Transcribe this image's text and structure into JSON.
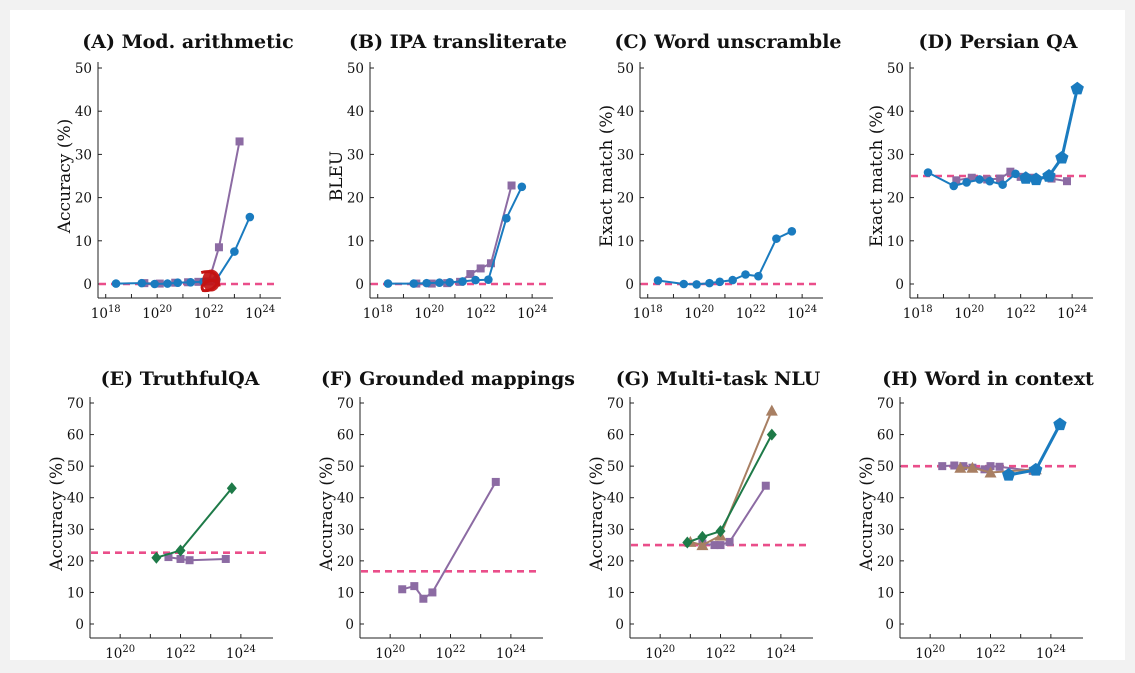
{
  "colors": {
    "purple": "#8c6ba3",
    "blue": "#1a7bbf",
    "green": "#1e7a48",
    "brown": "#a87f63",
    "baseline": "#ea4e8a",
    "highlight": "#c41212"
  },
  "chart_data": [
    {
      "type": "line",
      "title": "(A) Mod. arithmetic",
      "ylabel": "Accuracy (%)",
      "ylim": [
        0,
        50
      ],
      "yticks": [
        0,
        10,
        20,
        30,
        40,
        50
      ],
      "xscale": "log",
      "xlim_exp": [
        17.7,
        24.5
      ],
      "xtick_exp": [
        18,
        20,
        22,
        24
      ],
      "baseline": 0,
      "series": [
        {
          "color": "purple",
          "marker": "square",
          "points": [
            [
              19.5,
              0.2
            ],
            [
              20.1,
              0.1
            ],
            [
              20.7,
              0.3
            ],
            [
              21.2,
              0.4
            ],
            [
              21.6,
              0.5
            ],
            [
              22.0,
              0.6
            ],
            [
              22.4,
              8.5
            ],
            [
              23.2,
              33
            ]
          ]
        },
        {
          "color": "blue",
          "marker": "circle",
          "points": [
            [
              18.4,
              0.1
            ],
            [
              19.4,
              0.2
            ],
            [
              19.9,
              0.0
            ],
            [
              20.4,
              0.1
            ],
            [
              20.8,
              0.3
            ],
            [
              21.3,
              0.4
            ],
            [
              21.8,
              0.5
            ],
            [
              22.3,
              1.0
            ],
            [
              23.0,
              7.5
            ],
            [
              23.6,
              15.5
            ]
          ]
        }
      ],
      "annotation": {
        "shape": "scribble",
        "color": "highlight",
        "x": 22.1,
        "y": 0.8
      }
    },
    {
      "type": "line",
      "title": "(B) IPA transliterate",
      "ylabel": "BLEU",
      "ylim": [
        0,
        50
      ],
      "yticks": [
        0,
        10,
        20,
        30,
        40,
        50
      ],
      "xscale": "log",
      "xlim_exp": [
        17.7,
        24.5
      ],
      "xtick_exp": [
        18,
        20,
        22,
        24
      ],
      "baseline": 0,
      "series": [
        {
          "color": "purple",
          "marker": "square",
          "points": [
            [
              19.5,
              0.1
            ],
            [
              20.1,
              0.1
            ],
            [
              20.7,
              0.2
            ],
            [
              21.2,
              0.5
            ],
            [
              21.6,
              2.3
            ],
            [
              22.0,
              3.6
            ],
            [
              22.4,
              4.8
            ],
            [
              23.2,
              22.8
            ]
          ]
        },
        {
          "color": "blue",
          "marker": "circle",
          "points": [
            [
              18.4,
              0.1
            ],
            [
              19.4,
              0.1
            ],
            [
              19.9,
              0.2
            ],
            [
              20.4,
              0.3
            ],
            [
              20.8,
              0.4
            ],
            [
              21.3,
              0.6
            ],
            [
              21.8,
              0.9
            ],
            [
              22.3,
              1.0
            ],
            [
              23.0,
              15.2
            ],
            [
              23.6,
              22.5
            ]
          ]
        }
      ]
    },
    {
      "type": "line",
      "title": "(C) Word unscramble",
      "ylabel": "Exact match (%)",
      "ylim": [
        0,
        50
      ],
      "yticks": [
        0,
        10,
        20,
        30,
        40,
        50
      ],
      "xscale": "log",
      "xlim_exp": [
        17.7,
        24.5
      ],
      "xtick_exp": [
        18,
        20,
        22,
        24
      ],
      "baseline": 0,
      "series": [
        {
          "color": "blue",
          "marker": "circle",
          "points": [
            [
              18.4,
              0.8
            ],
            [
              19.4,
              0.0
            ],
            [
              19.9,
              -0.1
            ],
            [
              20.4,
              0.2
            ],
            [
              20.8,
              0.5
            ],
            [
              21.3,
              0.9
            ],
            [
              21.8,
              2.2
            ],
            [
              22.3,
              1.8
            ],
            [
              23.0,
              10.5
            ],
            [
              23.6,
              12.2
            ]
          ]
        }
      ]
    },
    {
      "type": "line",
      "title": "(D) Persian QA",
      "ylabel": "Exact match (%)",
      "ylim": [
        0,
        50
      ],
      "yticks": [
        0,
        10,
        20,
        30,
        40,
        50
      ],
      "xscale": "log",
      "xlim_exp": [
        17.7,
        24.5
      ],
      "xtick_exp": [
        18,
        20,
        22,
        24
      ],
      "baseline": 25,
      "series": [
        {
          "color": "purple",
          "marker": "square",
          "points": [
            [
              19.5,
              24.0
            ],
            [
              20.1,
              24.6
            ],
            [
              20.7,
              24.2
            ],
            [
              21.2,
              24.4
            ],
            [
              21.6,
              26.0
            ],
            [
              22.0,
              24.8
            ],
            [
              22.4,
              24.6
            ],
            [
              23.2,
              24.4
            ],
            [
              23.8,
              23.8
            ]
          ]
        },
        {
          "color": "blue",
          "marker": "circle",
          "points": [
            [
              18.4,
              25.8
            ],
            [
              19.4,
              22.7
            ],
            [
              19.9,
              23.5
            ],
            [
              20.4,
              24.2
            ],
            [
              20.8,
              23.8
            ],
            [
              21.3,
              23.0
            ],
            [
              21.8,
              25.5
            ]
          ]
        },
        {
          "color": "blue",
          "marker": "pentagon",
          "points": [
            [
              22.2,
              24.5
            ],
            [
              22.6,
              24.2
            ],
            [
              23.1,
              25.0
            ],
            [
              23.6,
              29.2
            ],
            [
              24.2,
              45.2
            ]
          ]
        }
      ]
    },
    {
      "type": "line",
      "title": "(E) TruthfulQA",
      "ylabel": "Accuracy (%)",
      "ylim": [
        0,
        70
      ],
      "yticks": [
        0,
        10,
        20,
        30,
        40,
        50,
        60,
        70
      ],
      "xscale": "log",
      "xlim_exp": [
        19.0,
        24.8
      ],
      "xtick_exp": [
        20,
        22,
        24
      ],
      "baseline": 22.6,
      "series": [
        {
          "color": "purple",
          "marker": "square",
          "points": [
            [
              21.6,
              21.2
            ],
            [
              22.0,
              20.6
            ],
            [
              22.3,
              20.2
            ],
            [
              23.5,
              20.6
            ]
          ]
        },
        {
          "color": "green",
          "marker": "diamond",
          "points": [
            [
              21.2,
              21.0
            ],
            [
              22.0,
              23.3
            ],
            [
              23.7,
              43.0
            ]
          ]
        }
      ]
    },
    {
      "type": "line",
      "title": "(F) Grounded mappings",
      "ylabel": "Accuracy (%)",
      "ylim": [
        0,
        70
      ],
      "yticks": [
        0,
        10,
        20,
        30,
        40,
        50,
        60,
        70
      ],
      "xscale": "log",
      "xlim_exp": [
        19.0,
        24.8
      ],
      "xtick_exp": [
        20,
        22,
        24
      ],
      "baseline": 16.7,
      "series": [
        {
          "color": "purple",
          "marker": "square",
          "points": [
            [
              20.4,
              11.0
            ],
            [
              20.8,
              12.0
            ],
            [
              21.1,
              8.0
            ],
            [
              21.4,
              10.0
            ],
            [
              23.5,
              45.0
            ]
          ]
        }
      ]
    },
    {
      "type": "line",
      "title": "(G) Multi-task NLU",
      "ylabel": "Accuracy (%)",
      "ylim": [
        0,
        70
      ],
      "yticks": [
        0,
        10,
        20,
        30,
        40,
        50,
        60,
        70
      ],
      "xscale": "log",
      "xlim_exp": [
        19.0,
        24.8
      ],
      "xtick_exp": [
        20,
        22,
        24
      ],
      "baseline": 25,
      "series": [
        {
          "color": "purple",
          "marker": "square",
          "points": [
            [
              21.4,
              25.5
            ],
            [
              21.8,
              25.0
            ],
            [
              22.0,
              25.0
            ],
            [
              22.3,
              26.0
            ],
            [
              23.5,
              43.8
            ]
          ]
        },
        {
          "color": "brown",
          "marker": "triangle",
          "points": [
            [
              21.0,
              26.0
            ],
            [
              21.4,
              25.0
            ],
            [
              22.0,
              28.0
            ],
            [
              23.7,
              67.6
            ]
          ]
        },
        {
          "color": "green",
          "marker": "diamond",
          "points": [
            [
              20.9,
              25.8
            ],
            [
              21.4,
              27.6
            ],
            [
              22.0,
              29.4
            ],
            [
              23.7,
              60.0
            ]
          ]
        }
      ]
    },
    {
      "type": "line",
      "title": "(H) Word in context",
      "ylabel": "Accuracy (%)",
      "ylim": [
        0,
        70
      ],
      "yticks": [
        0,
        10,
        20,
        30,
        40,
        50,
        60,
        70
      ],
      "xscale": "log",
      "xlim_exp": [
        19.0,
        24.8
      ],
      "xtick_exp": [
        20,
        22,
        24
      ],
      "baseline": 50,
      "series": [
        {
          "color": "purple",
          "marker": "square",
          "points": [
            [
              20.4,
              50.0
            ],
            [
              20.8,
              50.2
            ],
            [
              21.1,
              50.0
            ],
            [
              21.4,
              49.5
            ],
            [
              21.8,
              49.0
            ],
            [
              22.0,
              50.0
            ],
            [
              22.3,
              49.8
            ],
            [
              23.4,
              48.5
            ]
          ]
        },
        {
          "color": "brown",
          "marker": "triangle",
          "points": [
            [
              21.0,
              49.5
            ],
            [
              21.4,
              49.5
            ],
            [
              22.0,
              48.0
            ],
            [
              23.5,
              49.0
            ]
          ]
        },
        {
          "color": "blue",
          "marker": "pentagon",
          "points": [
            [
              22.6,
              47.2
            ],
            [
              23.5,
              48.8
            ],
            [
              24.3,
              63.2
            ]
          ]
        }
      ]
    }
  ]
}
